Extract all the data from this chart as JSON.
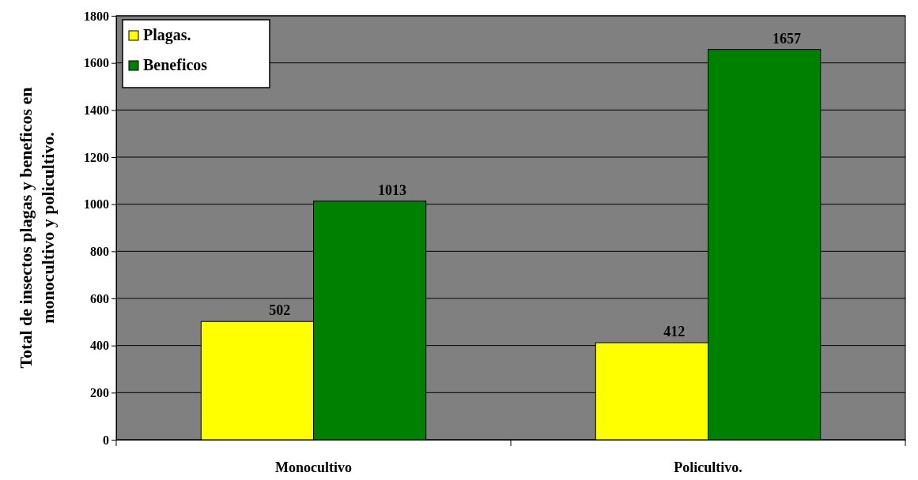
{
  "chart_data": {
    "type": "bar",
    "ylabel": "Total de insectos plagas y beneficos en\nmonocultivo y policultivo.",
    "categories": [
      "Monocultivo",
      "Policultivo."
    ],
    "series": [
      {
        "name": "Plagas.",
        "color": "#ffff00",
        "values": [
          502,
          412
        ]
      },
      {
        "name": "Beneficos",
        "color": "#008000",
        "values": [
          1013,
          1657
        ]
      }
    ],
    "ylim": [
      0,
      1800
    ],
    "yticks": [
      0,
      200,
      400,
      600,
      800,
      1000,
      1200,
      1400,
      1600,
      1800
    ],
    "grid": "y",
    "legend": "top left",
    "data_labels": true
  }
}
